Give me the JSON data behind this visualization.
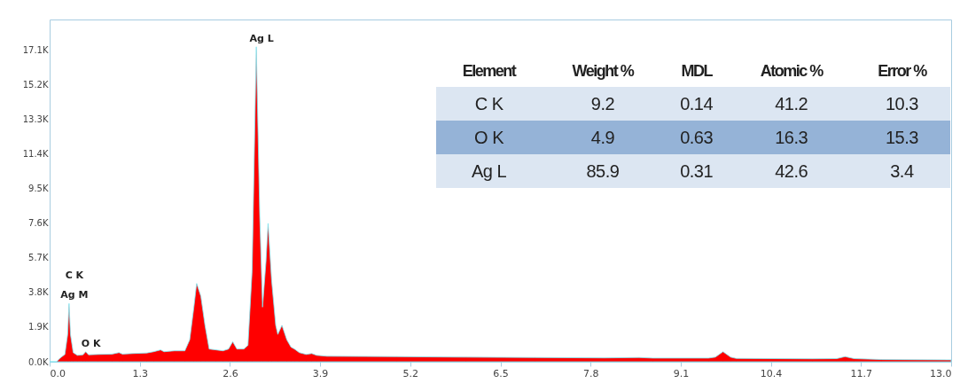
{
  "chart_data": {
    "type": "area",
    "x": [
      0.0,
      0.1,
      0.15,
      0.22,
      0.26,
      0.28,
      0.3,
      0.34,
      0.4,
      0.48,
      0.52,
      0.56,
      0.7,
      0.9,
      1.0,
      1.05,
      1.2,
      1.4,
      1.5,
      1.6,
      1.65,
      1.8,
      1.95,
      2.02,
      2.08,
      2.12,
      2.18,
      2.24,
      2.3,
      2.4,
      2.5,
      2.58,
      2.64,
      2.7,
      2.8,
      2.86,
      2.92,
      2.98,
      3.03,
      3.07,
      3.12,
      3.15,
      3.2,
      3.26,
      3.29,
      3.35,
      3.42,
      3.48,
      3.53,
      3.6,
      3.7,
      3.78,
      3.85,
      4.0,
      5.0,
      6.0,
      7.0,
      8.0,
      8.5,
      8.7,
      9.5,
      9.6,
      9.71,
      9.82,
      9.9,
      11.0,
      11.35,
      11.47,
      11.6,
      12.0,
      13.0
    ],
    "series": [
      {
        "color": "#ff0000",
        "values": [
          0,
          0,
          200,
          400,
          1500,
          3200,
          1500,
          500,
          350,
          380,
          550,
          380,
          400,
          420,
          500,
          420,
          450,
          480,
          550,
          650,
          550,
          600,
          600,
          1200,
          3000,
          4300,
          3600,
          2000,
          700,
          650,
          600,
          700,
          1100,
          700,
          700,
          900,
          5000,
          17300,
          8000,
          3000,
          5500,
          7600,
          4500,
          2000,
          1500,
          2000,
          1200,
          800,
          700,
          500,
          400,
          450,
          350,
          300,
          280,
          250,
          230,
          210,
          230,
          200,
          200,
          250,
          550,
          250,
          180,
          160,
          170,
          280,
          170,
          120,
          100
        ]
      }
    ],
    "xlim": [
      0,
      13
    ],
    "xticks": [
      {
        "value": 0,
        "label": "0.0"
      },
      1.3,
      2.6,
      3.9,
      5.2,
      6.5,
      7.8,
      9.1,
      10.4,
      11.7,
      {
        "value": 13,
        "label": "13.0"
      }
    ],
    "ylim": [
      0,
      18800
    ],
    "yticks": [
      {
        "value": 0,
        "label": "0.0K"
      },
      {
        "value": 1900,
        "label": "1.9K"
      },
      {
        "value": 3800,
        "label": "3.8K"
      },
      {
        "value": 5700,
        "label": "5.7K"
      },
      {
        "value": 7600,
        "label": "7.6K"
      },
      {
        "value": 9500,
        "label": "9.5K"
      },
      {
        "value": 11400,
        "label": "11.4K"
      },
      {
        "value": 13300,
        "label": "13.3K"
      },
      {
        "value": 15200,
        "label": "15.2K"
      },
      {
        "value": 17100,
        "label": "17.1K"
      }
    ],
    "grid": false,
    "legend": false,
    "marker": "none",
    "annotations": [
      {
        "text": "Ag L",
        "x": 2.98,
        "y": 17300
      },
      {
        "text": "Ag M",
        "x": 0.28,
        "y": 3200
      },
      {
        "text": "C K",
        "x": 0.28,
        "y": 3200
      },
      {
        "text": "O K",
        "x": 0.52,
        "y": 550
      },
      "Element",
      "Weight %",
      "MDL",
      "Atomic %",
      "Error %",
      "C K",
      "9.2",
      "0.14",
      "41.2",
      "10.3",
      "O K",
      "4.9",
      "0.63",
      "16.3",
      "15.3",
      "Ag L",
      "85.9",
      "0.31",
      "42.6",
      "3.4"
    ]
  }
}
